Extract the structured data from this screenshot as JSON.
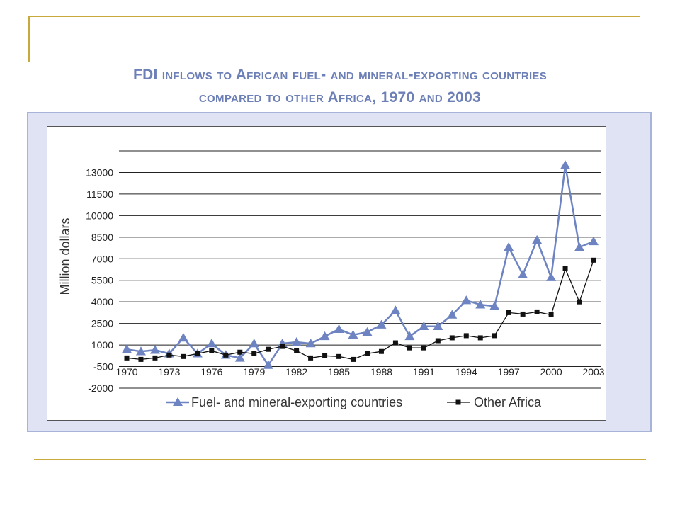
{
  "slide": {
    "title_line1": "FDI inflows to African fuel- and mineral-exporting countries",
    "title_line2": "compared to other Africa, 1970 and 2003",
    "accent_color": "#c8a93a"
  },
  "chart_data": {
    "type": "line",
    "title": "FDI inflows to African fuel- and mineral-exporting countries compared to other Africa, 1970 and 2003",
    "xlabel": "",
    "ylabel": "Million dollars",
    "xlim": [
      1970,
      2003
    ],
    "ylim": [
      -2000,
      14500
    ],
    "x_ticks": [
      "1970",
      "1973",
      "1976",
      "1979",
      "1982",
      "1985",
      "1988",
      "1991",
      "1994",
      "1997",
      "2000",
      "2003"
    ],
    "y_ticks": [
      "13000",
      "11500",
      "10000",
      "8500",
      "7000",
      "5500",
      "4000",
      "2500",
      "1000",
      "-500",
      "-2000"
    ],
    "grid": true,
    "legend_position": "bottom",
    "x": [
      1970,
      1971,
      1972,
      1973,
      1974,
      1975,
      1976,
      1977,
      1978,
      1979,
      1980,
      1981,
      1982,
      1983,
      1984,
      1985,
      1986,
      1987,
      1988,
      1989,
      1990,
      1991,
      1992,
      1993,
      1994,
      1995,
      1996,
      1997,
      1998,
      1999,
      2000,
      2001,
      2002,
      2003
    ],
    "series": [
      {
        "name": "Fuel- and mineral-exporting countries",
        "color": "#6e84c2",
        "marker": "triangle",
        "values": [
          700,
          550,
          650,
          400,
          1500,
          400,
          1100,
          300,
          100,
          1100,
          -400,
          1100,
          1200,
          1100,
          1600,
          2100,
          1700,
          1900,
          2400,
          3400,
          1600,
          2300,
          2300,
          3100,
          4100,
          3800,
          3700,
          7800,
          5900,
          8300,
          5700,
          13500,
          7800,
          8200
        ]
      },
      {
        "name": "Other Africa",
        "color": "#111111",
        "marker": "square",
        "values": [
          100,
          0,
          100,
          300,
          200,
          400,
          600,
          300,
          500,
          400,
          700,
          900,
          600,
          100,
          250,
          200,
          0,
          400,
          550,
          1150,
          800,
          800,
          1300,
          1500,
          1650,
          1500,
          1650,
          3250,
          3150,
          3300,
          3100,
          6300,
          4000,
          6900
        ]
      }
    ]
  }
}
